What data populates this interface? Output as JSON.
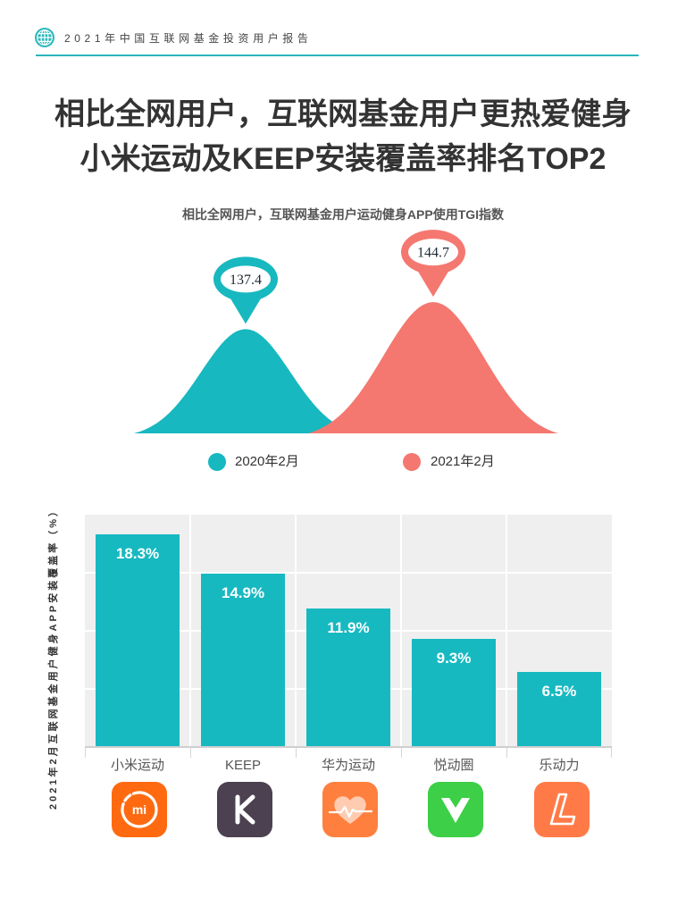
{
  "header": {
    "report_title": "2021年中国互联网基金投资用户报告",
    "icon": "globe-icon"
  },
  "title": {
    "line1": "相比全网用户，互联网基金用户更热爱健身",
    "line2": "小米运动及KEEP安装覆盖率排名TOP2"
  },
  "colors": {
    "accent": "#2ab7bc",
    "plot_bg": "#efefef"
  },
  "chart_data": [
    {
      "type": "area",
      "title": "相比全网用户，互联网基金用户运动健身APP使用TGI指数",
      "series": [
        {
          "name": "2020年2月",
          "value": 137.4,
          "color": "#17b8bf"
        },
        {
          "name": "2021年2月",
          "value": 144.7,
          "color": "#f47870"
        }
      ],
      "legend": "bottom",
      "grid": false
    },
    {
      "type": "bar",
      "categories": [
        "小米运动",
        "KEEP",
        "华为运动",
        "悦动圈",
        "乐动力"
      ],
      "values": [
        18.3,
        14.9,
        11.9,
        9.3,
        6.5
      ],
      "data_labels": [
        "18.3%",
        "14.9%",
        "11.9%",
        "9.3%",
        "6.5%"
      ],
      "ylabel": "2021年2月互联网基金用户健身APP安装覆盖率（%）",
      "ylim": [
        0,
        20
      ],
      "grid": true,
      "color": "#17b9c1"
    }
  ],
  "apps": [
    {
      "icon": "xiaomi-sport-app-icon",
      "color": "#ff6a10",
      "logo_text": "mi"
    },
    {
      "icon": "keep-app-icon",
      "color": "#4b4150"
    },
    {
      "icon": "huawei-health-app-icon",
      "color": "#ff7f3e"
    },
    {
      "icon": "yuedongquan-app-icon",
      "color": "#3dcf47"
    },
    {
      "icon": "ledongli-app-icon",
      "color": "#ff7a47"
    }
  ]
}
